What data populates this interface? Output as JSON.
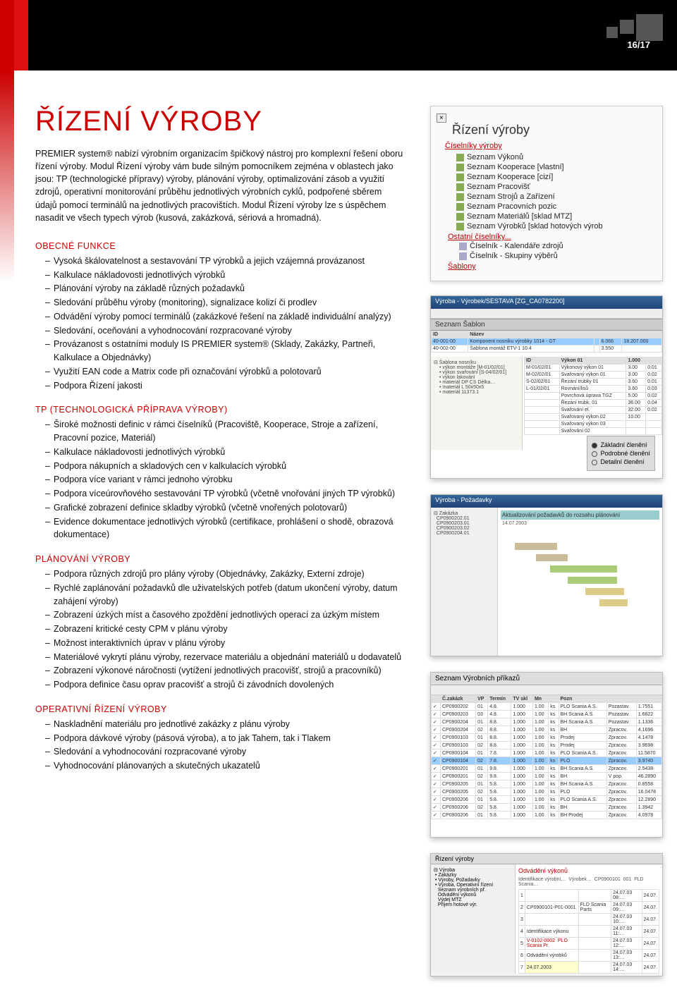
{
  "page_number": "16/17",
  "title": "ŘÍZENÍ VÝROBY",
  "intro": "PREMIER system® nabízí výrobním organizacím špičkový nástroj pro komplexní řešení oboru řízení výroby. Modul Řízení výroby vám bude silným pomocníkem zejména v oblastech jako jsou: TP (technologické přípravy) výroby, plánování výroby, optimalizování zásob a využití zdrojů, operativní monitorování průběhu jednotlivých výrobních cyklů, podpořené sběrem údajů pomocí terminálů na jednotlivých pracovištích. Modul Řízení výroby lze s úspěchem nasadit ve všech typech výrob (kusová, zakázková, sériová a hromadná).",
  "sections": {
    "s1": {
      "title": "OBECNÉ FUNKCE",
      "items": [
        "Vysoká škálovatelnost a sestavování TP výrobků a jejich vzájemná provázanost",
        "Kalkulace nákladovosti jednotlivých výrobků",
        "Plánování výroby na základě různých požadavků",
        "Sledování průběhu výroby (monitoring), signalizace kolizí či prodlev",
        "Odvádění výroby pomocí terminálů (zakázkové řešení na základě individuální analýzy)",
        "Sledování, oceňování a vyhodnocování rozpracované výroby",
        "Provázanost s ostatními moduly IS PREMIER system® (Sklady, Zakázky, Partneři, Kalkulace a Objednávky)",
        "Využití EAN code a Matrix code při označování výrobků a polotovarů",
        "Podpora Řízení jakosti"
      ]
    },
    "s2": {
      "title": "TP (TECHNOLOGICKÁ PŘÍPRAVA VÝROBY)",
      "items": [
        "Široké možnosti definic v rámci číselníků (Pracoviště, Kooperace, Stroje a zařízení, Pracovní pozice, Materiál)",
        "Kalkulace nákladovosti jednotlivých výrobků",
        "Podpora nákupních a skladových cen v kalkulacích výrobků",
        "Podpora více variant v rámci jednoho výrobku",
        "Podpora víceúrovňového sestavování TP výrobků (včetně vnořování jiných TP výrobků)",
        "Grafické zobrazení definice skladby výrobků (včetně vnořených polotovarů)",
        "Evidence dokumentace jednotlivých výrobků (certifikace, prohlášení o shodě, obrazová dokumentace)"
      ]
    },
    "s3": {
      "title": "PLÁNOVÁNÍ VÝROBY",
      "items": [
        "Podpora různých zdrojů pro plány výroby (Objednávky, Zakázky, Externí zdroje)",
        "Rychlé zaplánování požadavků dle uživatelských potřeb (datum ukončení výroby, datum zahájení výroby)",
        "Zobrazení úzkých míst a časového zpoždění jednotlivých operací za úzkým místem",
        "Zobrazení kritické cesty CPM v plánu výroby",
        "Možnost interaktivních úprav v plánu výroby",
        "Materiálové vykrytí plánu výroby, rezervace materiálu a objednání materiálů u dodavatelů",
        "Zobrazení výkonové náročnosti (vytížení jednotlivých pracovišť, strojů a pracovníků)",
        "Podpora definice času oprav pracovišť a strojů či závodních dovolených"
      ]
    },
    "s4": {
      "title": "OPERATIVNÍ ŘÍZENÍ VÝROBY",
      "items": [
        "Naskladnění materiálu pro jednotlivé zakázky z plánu výroby",
        "Podpora dávkové výroby (pásová výroba), a to jak Tahem, tak i Tlakem",
        "Sledování a vyhodnocování rozpracované výroby",
        "Vyhodnocování plánovaných a skutečných ukazatelů"
      ]
    }
  },
  "tree": {
    "panel_title": "Řízení výroby",
    "root": "Číselníky výroby",
    "items": [
      "Seznam Výkonů",
      "Seznam Kooperace [vlastní]",
      "Seznam Kooperace [cizí]",
      "Seznam Pracovišť",
      "Seznam Strojů a Zařízení",
      "Seznam Pracovních pozic",
      "Seznam Materiálů [sklad MTZ]",
      "Seznam Výrobků [sklad hotových výrob"
    ],
    "subroot": "Ostatní číselníky...",
    "subitems": [
      "Číselník - Kalendáře zdrojů",
      "Číselník - Skupiny výběrů"
    ],
    "sablony": "Šablony"
  },
  "radio": {
    "r1": "Základní členění",
    "r2": "Podrobné členění",
    "r3": "Detailní členění"
  },
  "shot1_tab": "Seznam Šablon",
  "shot2_title": "Výroba - Požadavky",
  "shot3_title": "Seznam Výrobních příkazů",
  "shot4_title": "Řízení výroby",
  "shot4_panel": "Odvádění výkonů"
}
